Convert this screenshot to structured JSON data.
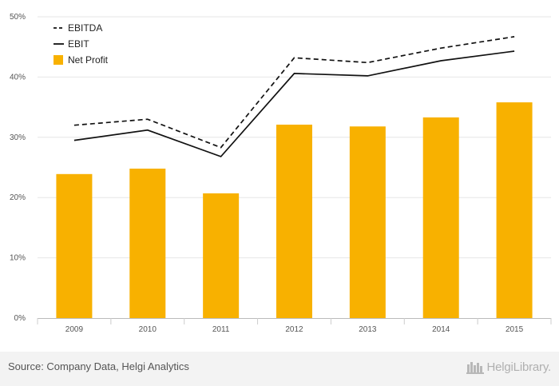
{
  "chart_data": {
    "type": "bar+line",
    "categories": [
      "2009",
      "2010",
      "2011",
      "2012",
      "2013",
      "2014",
      "2015"
    ],
    "series": [
      {
        "name": "EBITDA",
        "kind": "line",
        "style": "dashed",
        "values": [
          32.0,
          33.0,
          28.3,
          43.2,
          42.4,
          44.8,
          46.7
        ]
      },
      {
        "name": "EBIT",
        "kind": "line",
        "style": "solid",
        "values": [
          29.5,
          31.2,
          26.8,
          40.6,
          40.2,
          42.7,
          44.3
        ]
      },
      {
        "name": "Net Profit",
        "kind": "bar",
        "values": [
          23.9,
          24.8,
          20.7,
          32.1,
          31.8,
          33.3,
          35.8
        ]
      }
    ],
    "ylim": [
      0,
      50
    ],
    "yticks": [
      "0%",
      "10%",
      "20%",
      "30%",
      "40%",
      "50%"
    ],
    "grid": true,
    "legend_position": "top-left",
    "colors": {
      "bar": "#f8b100",
      "EBITDA": "#111111",
      "EBIT": "#111111",
      "grid": "#e6e6e6"
    }
  },
  "footer": {
    "source": "Source: Company Data, Helgi Analytics",
    "logo_text": "HelgiLibrary."
  }
}
